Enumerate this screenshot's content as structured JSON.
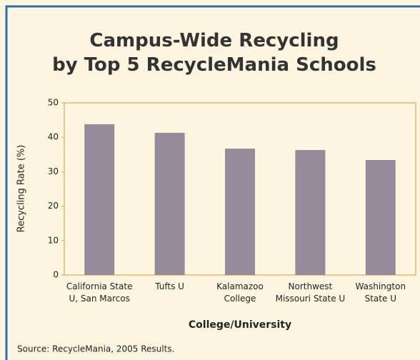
{
  "chart_data": {
    "type": "bar",
    "title": "Campus-Wide Recycling\nby Top 5 RecycleMania Schools",
    "x_label": "College/University",
    "y_label": "Recycling Rate (%)",
    "source": "Source: RecycleMania, 2005 Results.",
    "categories": [
      "California State\nU, San Marcos",
      "Tufts U",
      "Kalamazoo\nCollege",
      "Northwest\nMissouri State U",
      "Washington\nState U"
    ],
    "values": [
      43.8,
      41.3,
      36.7,
      36.3,
      33.4
    ],
    "color": "#958b9b",
    "ylim": [
      0,
      50
    ],
    "yticks": [
      0,
      10,
      20,
      30,
      40,
      50
    ],
    "grid": false
  }
}
